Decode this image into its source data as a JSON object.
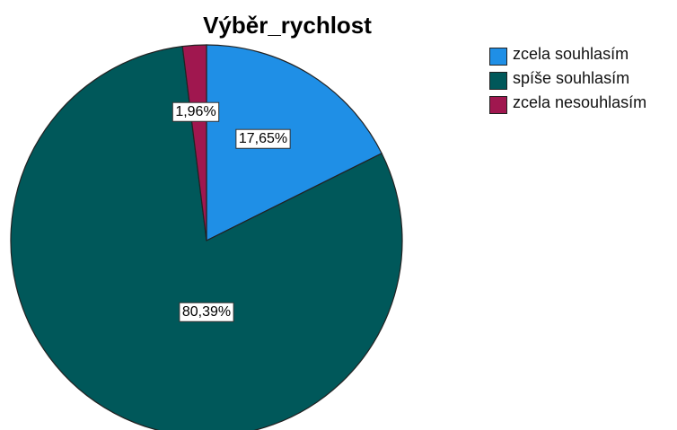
{
  "chart_data": {
    "type": "pie",
    "title": "Výběr_rychlost",
    "categories": [
      "zcela souhlasím",
      "spíše souhlasím",
      "zcela nesouhlasím"
    ],
    "values": [
      17.65,
      80.39,
      1.96
    ],
    "value_labels": [
      "17,65%",
      "80,39%",
      "1,96%"
    ],
    "colors": [
      "#1f8fe6",
      "#00585a",
      "#a0174f"
    ],
    "legend": "right"
  }
}
